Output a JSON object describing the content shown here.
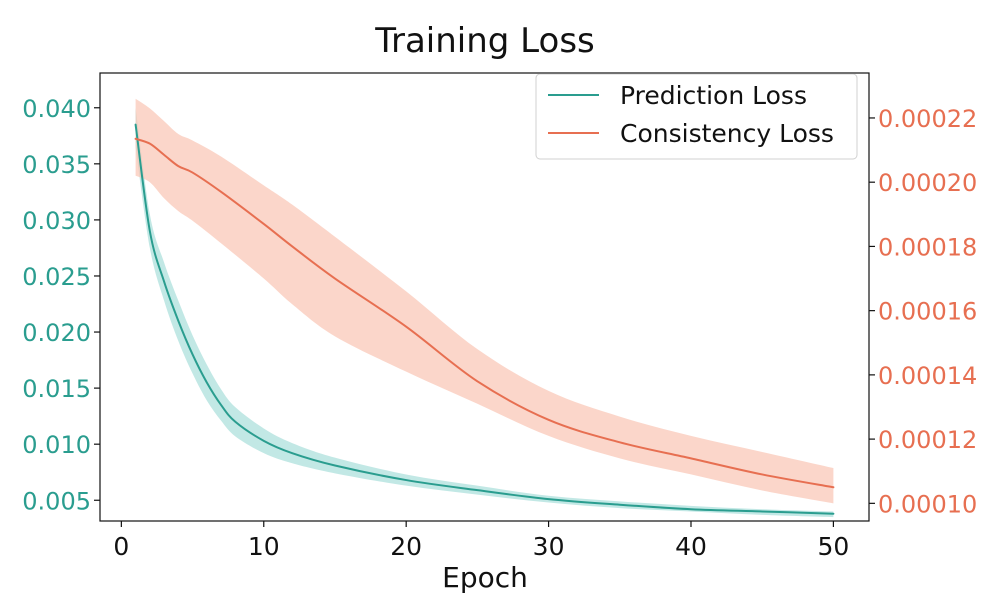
{
  "chart_data": {
    "type": "line",
    "title": "Training Loss",
    "xlabel": "Epoch",
    "ylabel": "",
    "y2label": "",
    "xlim": [
      -1.5,
      52.5
    ],
    "ylim": [
      0.00315,
      0.0431
    ],
    "y2lim": [
      9.45e-05,
      0.000234
    ],
    "xticks": [
      0,
      10,
      20,
      30,
      40,
      50
    ],
    "xtick_labels": [
      "0",
      "10",
      "20",
      "30",
      "40",
      "50"
    ],
    "yticks": [
      0.005,
      0.01,
      0.015,
      0.02,
      0.025,
      0.03,
      0.035,
      0.04
    ],
    "ytick_labels": [
      "0.005",
      "0.010",
      "0.015",
      "0.020",
      "0.025",
      "0.030",
      "0.035",
      "0.040"
    ],
    "y2ticks": [
      0.0001,
      0.00012,
      0.00014,
      0.00016,
      0.00018,
      0.0002,
      0.00022
    ],
    "y2tick_labels": [
      "0.00010",
      "0.00012",
      "0.00014",
      "0.00016",
      "0.00018",
      "0.00020",
      "0.00022"
    ],
    "grid": false,
    "legend_position": "top-right",
    "series": [
      {
        "name": "Prediction Loss",
        "axis": "left",
        "color": "#2a9d8f",
        "band_color": "#8fd6cf",
        "x": [
          1,
          2,
          3,
          4,
          5,
          6,
          7,
          8,
          10,
          12,
          15,
          20,
          25,
          30,
          35,
          40,
          45,
          50
        ],
        "y": [
          0.0385,
          0.029,
          0.0245,
          0.021,
          0.018,
          0.0155,
          0.0135,
          0.012,
          0.0103,
          0.0092,
          0.0081,
          0.0068,
          0.0059,
          0.0051,
          0.0046,
          0.0042,
          0.004,
          0.0038
        ],
        "lower": [
          0.0365,
          0.0275,
          0.0228,
          0.0192,
          0.0163,
          0.0139,
          0.0121,
          0.0107,
          0.0092,
          0.0083,
          0.0074,
          0.0063,
          0.0055,
          0.0048,
          0.0043,
          0.004,
          0.0037,
          0.0035
        ],
        "upper": [
          0.04,
          0.0305,
          0.0262,
          0.0228,
          0.0197,
          0.0171,
          0.0149,
          0.0133,
          0.0114,
          0.0101,
          0.0088,
          0.0073,
          0.0063,
          0.0054,
          0.0049,
          0.0045,
          0.0042,
          0.004
        ]
      },
      {
        "name": "Consistency Loss",
        "axis": "right",
        "color": "#e76f51",
        "band_color": "#f9c4b4",
        "x": [
          1,
          2,
          3,
          4,
          5,
          7,
          10,
          12,
          15,
          20,
          25,
          30,
          35,
          40,
          45,
          50
        ],
        "y": [
          0.0002135,
          0.000212,
          0.0002085,
          0.000205,
          0.000203,
          0.000197,
          0.000187,
          0.00018,
          0.00017,
          0.000155,
          0.000138,
          0.000126,
          0.000119,
          0.000114,
          0.000109,
          0.000105
        ],
        "lower": [
          0.000202,
          0.0002,
          0.000195,
          0.000191,
          0.000188,
          0.000181,
          0.00017,
          0.000162,
          0.000152,
          0.000141,
          0.000131,
          0.000121,
          0.000114,
          0.000109,
          0.000104,
          0.0001
        ],
        "upper": [
          0.000226,
          0.000223,
          0.000219,
          0.000215,
          0.000213,
          0.000208,
          0.000199,
          0.000193,
          0.000183,
          0.000166,
          0.000148,
          0.000135,
          0.000127,
          0.000121,
          0.000116,
          0.000111
        ]
      }
    ]
  }
}
